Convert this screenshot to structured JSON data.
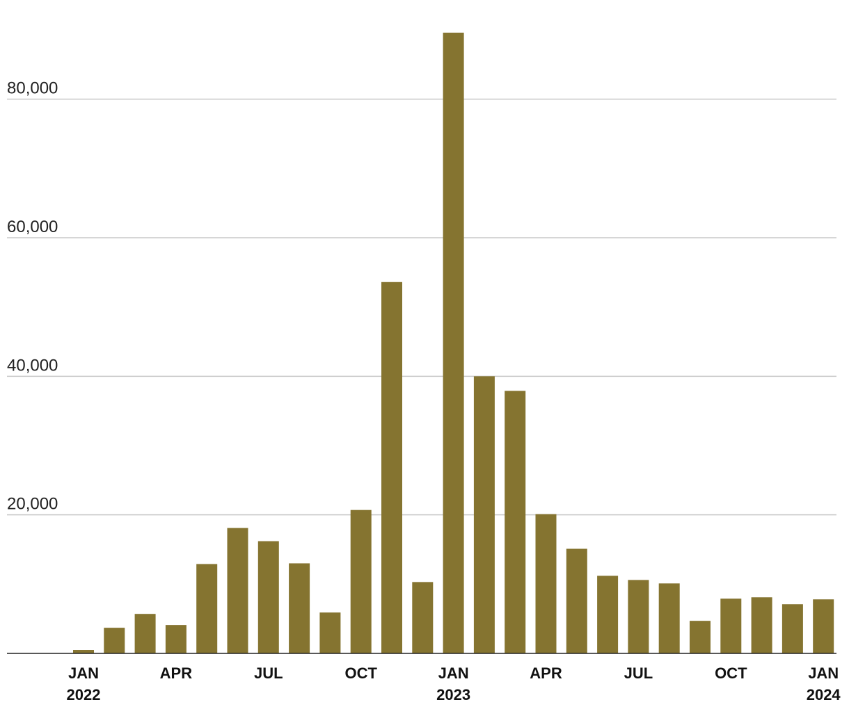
{
  "chart_data": {
    "type": "bar",
    "title": "",
    "xlabel": "",
    "ylabel": "",
    "ylim": [
      0,
      90000
    ],
    "grid": true,
    "bar_color": "#857430",
    "months": [
      "2021-12",
      "2022-01",
      "2022-02",
      "2022-03",
      "2022-04",
      "2022-05",
      "2022-06",
      "2022-07",
      "2022-08",
      "2022-09",
      "2022-10",
      "2022-11",
      "2022-12",
      "2023-01",
      "2023-02",
      "2023-03",
      "2023-04",
      "2023-05",
      "2023-06",
      "2023-07",
      "2023-08",
      "2023-09",
      "2023-10",
      "2023-11",
      "2023-12",
      "2024-01"
    ],
    "values": [
      0,
      500,
      3700,
      5700,
      4100,
      12900,
      18100,
      16200,
      13000,
      5900,
      20700,
      53600,
      10300,
      89600,
      40000,
      37900,
      20100,
      15100,
      11200,
      10600,
      10100,
      4700,
      7900,
      8100,
      7100,
      7800
    ],
    "y_ticks": [
      {
        "value": 20000,
        "label": "20,000"
      },
      {
        "value": 40000,
        "label": "40,000"
      },
      {
        "value": 60000,
        "label": "60,000"
      },
      {
        "value": 80000,
        "label": "80,000"
      }
    ],
    "x_ticks": [
      {
        "month": "2022-01",
        "label": "JAN",
        "year": "2022"
      },
      {
        "month": "2022-04",
        "label": "APR",
        "year": ""
      },
      {
        "month": "2022-07",
        "label": "JUL",
        "year": ""
      },
      {
        "month": "2022-10",
        "label": "OCT",
        "year": ""
      },
      {
        "month": "2023-01",
        "label": "JAN",
        "year": "2023"
      },
      {
        "month": "2023-04",
        "label": "APR",
        "year": ""
      },
      {
        "month": "2023-07",
        "label": "JUL",
        "year": ""
      },
      {
        "month": "2023-10",
        "label": "OCT",
        "year": ""
      },
      {
        "month": "2024-01",
        "label": "JAN",
        "year": "2024"
      }
    ]
  }
}
